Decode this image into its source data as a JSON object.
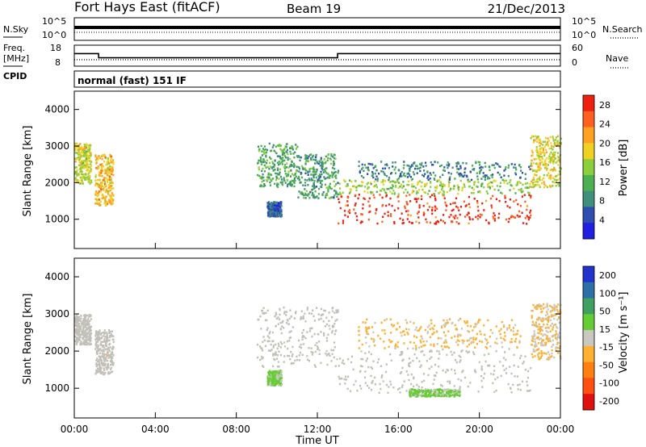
{
  "header": {
    "station": "Fort Hays East (fitACF)",
    "beam": "Beam 19",
    "date": "21/Dec/2013"
  },
  "info_panel": {
    "nsky_label": "N.Sky",
    "nsearch_label": "N.Search",
    "freq_label_top": "Freq.",
    "freq_label_unit": "[MHz]",
    "cpid_label": "CPID",
    "nave_label": "Nave",
    "cpid_text": "normal (fast) 151 IF",
    "noise_ticks": [
      "10^5",
      "10^0"
    ],
    "freq_ticks": [
      "18",
      "8"
    ],
    "nave_ticks": [
      "60",
      "0"
    ],
    "frequency_steps": [
      {
        "from_hour": 0,
        "to_hour": 1.2,
        "mhz": 14
      },
      {
        "from_hour": 1.2,
        "to_hour": 13,
        "mhz": 12
      },
      {
        "from_hour": 13,
        "to_hour": 24,
        "mhz": 14
      }
    ]
  },
  "colors": {
    "power_scale": [
      "#2020e0",
      "#2e4fb0",
      "#3f8f7a",
      "#4caf50",
      "#8ccf3c",
      "#f0d020",
      "#ffa020",
      "#ff6020",
      "#f02010"
    ],
    "velocity_scale": [
      "#2233cc",
      "#2e6fa8",
      "#3fa060",
      "#66cc33",
      "#c8c8c0",
      "#ffb030",
      "#ff8010",
      "#ff5010",
      "#e01010"
    ],
    "ground_scatter": "#c0c0b8"
  },
  "chart_data": [
    {
      "type": "heatmap",
      "panel": "power",
      "ylabel": "Slant Range [km]",
      "yticks": [
        "1000",
        "2000",
        "3000",
        "4000"
      ],
      "ylim": [
        200,
        4500
      ],
      "xlim_hours": [
        0,
        24
      ],
      "colorbar": {
        "label": "Power [dB]",
        "ticks": [
          "4",
          "8",
          "12",
          "16",
          "20",
          "24",
          "28"
        ],
        "range": [
          0,
          30
        ]
      },
      "regions": [
        {
          "t0": 0.0,
          "t1": 0.8,
          "r_low": 2000,
          "r_high": 3100,
          "level": 17
        },
        {
          "t0": 1.0,
          "t1": 1.9,
          "r_low": 1400,
          "r_high": 2800,
          "level": 20
        },
        {
          "t0": 9.0,
          "t1": 11.0,
          "r_low": 1900,
          "r_high": 3100,
          "level": 11
        },
        {
          "t0": 9.5,
          "t1": 10.2,
          "r_low": 1100,
          "r_high": 1500,
          "level": 6
        },
        {
          "t0": 11.0,
          "t1": 13.0,
          "r_low": 1600,
          "r_high": 2800,
          "level": 10
        },
        {
          "t0": 13.0,
          "t1": 22.5,
          "r_low": 900,
          "r_high": 1700,
          "level": 27
        },
        {
          "t0": 13.0,
          "t1": 22.5,
          "r_low": 1700,
          "r_high": 2100,
          "level": 15
        },
        {
          "t0": 14.0,
          "t1": 22.5,
          "r_low": 2100,
          "r_high": 2600,
          "level": 8
        },
        {
          "t0": 22.5,
          "t1": 24.0,
          "r_low": 1900,
          "r_high": 3300,
          "level": 18
        }
      ]
    },
    {
      "type": "heatmap",
      "panel": "velocity",
      "ylabel": "Slant Range [km]",
      "yticks": [
        "1000",
        "2000",
        "3000",
        "4000"
      ],
      "ylim": [
        200,
        4500
      ],
      "xlabel": "Time UT",
      "xticks": [
        "00:00",
        "04:00",
        "08:00",
        "12:00",
        "16:00",
        "20:00",
        "00:00"
      ],
      "xlim_hours": [
        0,
        24
      ],
      "colorbar": {
        "label": "Velocity [m s⁻¹]",
        "ticks": [
          "200",
          "100",
          "50",
          "15",
          "-15",
          "-50",
          "-100",
          "-200"
        ],
        "range": [
          -250,
          250
        ]
      },
      "regions": [
        {
          "t0": 0.0,
          "t1": 0.8,
          "r_low": 2200,
          "r_high": 3000,
          "value": 0,
          "ground_scatter": true
        },
        {
          "t0": 1.0,
          "t1": 1.9,
          "r_low": 1400,
          "r_high": 2600,
          "value": 0,
          "ground_scatter": true
        },
        {
          "t0": 9.0,
          "t1": 13.0,
          "r_low": 1600,
          "r_high": 3200,
          "value": 0,
          "ground_scatter": true
        },
        {
          "t0": 9.5,
          "t1": 10.2,
          "r_low": 1100,
          "r_high": 1500,
          "value": 40
        },
        {
          "t0": 13.0,
          "t1": 22.5,
          "r_low": 900,
          "r_high": 2100,
          "value": 0,
          "ground_scatter": true
        },
        {
          "t0": 16.5,
          "t1": 19.0,
          "r_low": 800,
          "r_high": 1000,
          "value": 40
        },
        {
          "t0": 14.0,
          "t1": 22.0,
          "r_low": 2100,
          "r_high": 2900,
          "value": -40
        },
        {
          "t0": 22.5,
          "t1": 24.0,
          "r_low": 1800,
          "r_high": 3300,
          "value": -30
        }
      ]
    }
  ]
}
